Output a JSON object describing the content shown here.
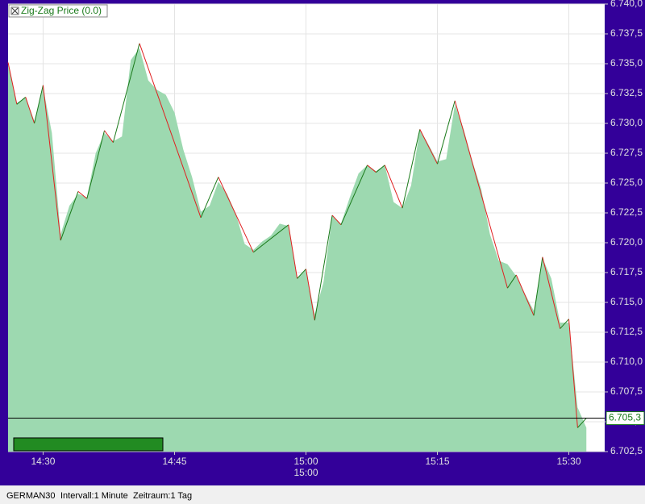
{
  "chart_data": {
    "type": "area",
    "x": [
      "14:26",
      "14:27",
      "14:28",
      "14:29",
      "14:30",
      "14:31",
      "14:32",
      "14:33",
      "14:34",
      "14:35",
      "14:36",
      "14:37",
      "14:38",
      "14:39",
      "14:40",
      "14:41",
      "14:42",
      "14:43",
      "14:44",
      "14:45",
      "14:46",
      "14:47",
      "14:48",
      "14:49",
      "14:50",
      "14:51",
      "14:52",
      "14:53",
      "14:54",
      "14:55",
      "14:56",
      "14:57",
      "14:58",
      "14:59",
      "15:00",
      "15:01",
      "15:02",
      "15:03",
      "15:04",
      "15:05",
      "15:06",
      "15:07",
      "15:08",
      "15:09",
      "15:10",
      "15:11",
      "15:12",
      "15:13",
      "15:14",
      "15:15",
      "15:16",
      "15:17",
      "15:18",
      "15:19",
      "15:20",
      "15:21",
      "15:22",
      "15:23",
      "15:24",
      "15:25",
      "15:26",
      "15:27",
      "15:28",
      "15:29",
      "15:30",
      "15:31",
      "15:32"
    ],
    "values": [
      6734.9,
      6731.7,
      6732.2,
      6730.2,
      6733.0,
      6729.2,
      6720.7,
      6723.1,
      6724.1,
      6723.8,
      6727.5,
      6729.2,
      6728.5,
      6728.9,
      6735.3,
      6736.3,
      6733.6,
      6732.8,
      6732.4,
      6730.9,
      6727.8,
      6725.5,
      6722.6,
      6723.1,
      6725.1,
      6724.1,
      6722.4,
      6719.9,
      6719.4,
      6720.1,
      6720.6,
      6721.6,
      6721.4,
      6717.0,
      6717.8,
      6714.0,
      6716.7,
      6722.3,
      6721.6,
      6723.8,
      6725.8,
      6726.5,
      6726.0,
      6726.5,
      6723.4,
      6722.9,
      6724.8,
      6729.5,
      6728.2,
      6726.8,
      6727.0,
      6731.6,
      6729.5,
      6726.8,
      6724.5,
      6720.7,
      6718.5,
      6718.2,
      6717.2,
      6715.7,
      6714.3,
      6718.7,
      6717.0,
      6713.3,
      6713.3,
      6706.2,
      6704.5
    ],
    "color": "#9dd9b0",
    "zigzag": {
      "name": "Zig-Zag Price (0.0)",
      "up_color": "#1a7a1a",
      "down_color": "#e02020",
      "x": [
        "14:26",
        "14:27",
        "14:28",
        "14:29",
        "14:30",
        "14:32",
        "14:34",
        "14:35",
        "14:37",
        "14:38",
        "14:41",
        "14:48",
        "14:50",
        "14:54",
        "14:58",
        "14:59",
        "15:00",
        "15:01",
        "15:03",
        "15:04",
        "15:07",
        "15:08",
        "15:09",
        "15:11",
        "15:13",
        "15:15",
        "15:17",
        "15:23",
        "15:24",
        "15:26",
        "15:27",
        "15:29",
        "15:30",
        "15:31",
        "15:32"
      ],
      "values": [
        6735.1,
        6731.6,
        6732.2,
        6730.0,
        6733.2,
        6720.2,
        6724.3,
        6723.7,
        6729.4,
        6728.4,
        6736.7,
        6722.1,
        6725.5,
        6719.2,
        6721.5,
        6717.0,
        6717.8,
        6713.5,
        6722.3,
        6721.5,
        6726.5,
        6725.9,
        6726.5,
        6722.9,
        6729.5,
        6726.6,
        6731.9,
        6716.2,
        6717.3,
        6713.9,
        6718.8,
        6712.8,
        6713.6,
        6704.5,
        6705.3
      ]
    },
    "last_value": 6705.3,
    "last_label": "6.705,3",
    "xlim": [
      "14:26",
      "15:34"
    ],
    "xticks": [
      "14:30",
      "14:45",
      "15:00",
      "15:15",
      "15:30"
    ],
    "xtick_sublabels": [
      null,
      null,
      "15:00",
      null,
      null
    ],
    "ylim": [
      6702.5,
      6740
    ],
    "yticks": [
      {
        "value": 6702.5,
        "label": "6.702,5"
      },
      {
        "value": 6705,
        "label": "6.705,0"
      },
      {
        "value": 6707.5,
        "label": "6.707,5"
      },
      {
        "value": 6710,
        "label": "6.710,0"
      },
      {
        "value": 6712.5,
        "label": "6.712,5"
      },
      {
        "value": 6715,
        "label": "6.715,0"
      },
      {
        "value": 6717.5,
        "label": "6.717,5"
      },
      {
        "value": 6720,
        "label": "6.720,0"
      },
      {
        "value": 6722.5,
        "label": "6.722,5"
      },
      {
        "value": 6725,
        "label": "6.725,0"
      },
      {
        "value": 6727.5,
        "label": "6.727,5"
      },
      {
        "value": 6730,
        "label": "6.730,0"
      },
      {
        "value": 6732.5,
        "label": "6.732,5"
      },
      {
        "value": 6735,
        "label": "6.735,0"
      },
      {
        "value": 6737.5,
        "label": "6.737,5"
      },
      {
        "value": 6740,
        "label": "6.740,0"
      }
    ],
    "grid": true
  },
  "footer": [
    "GERMAN30",
    "Intervall:1 Minute",
    "Zeitraum:1 Tag"
  ]
}
